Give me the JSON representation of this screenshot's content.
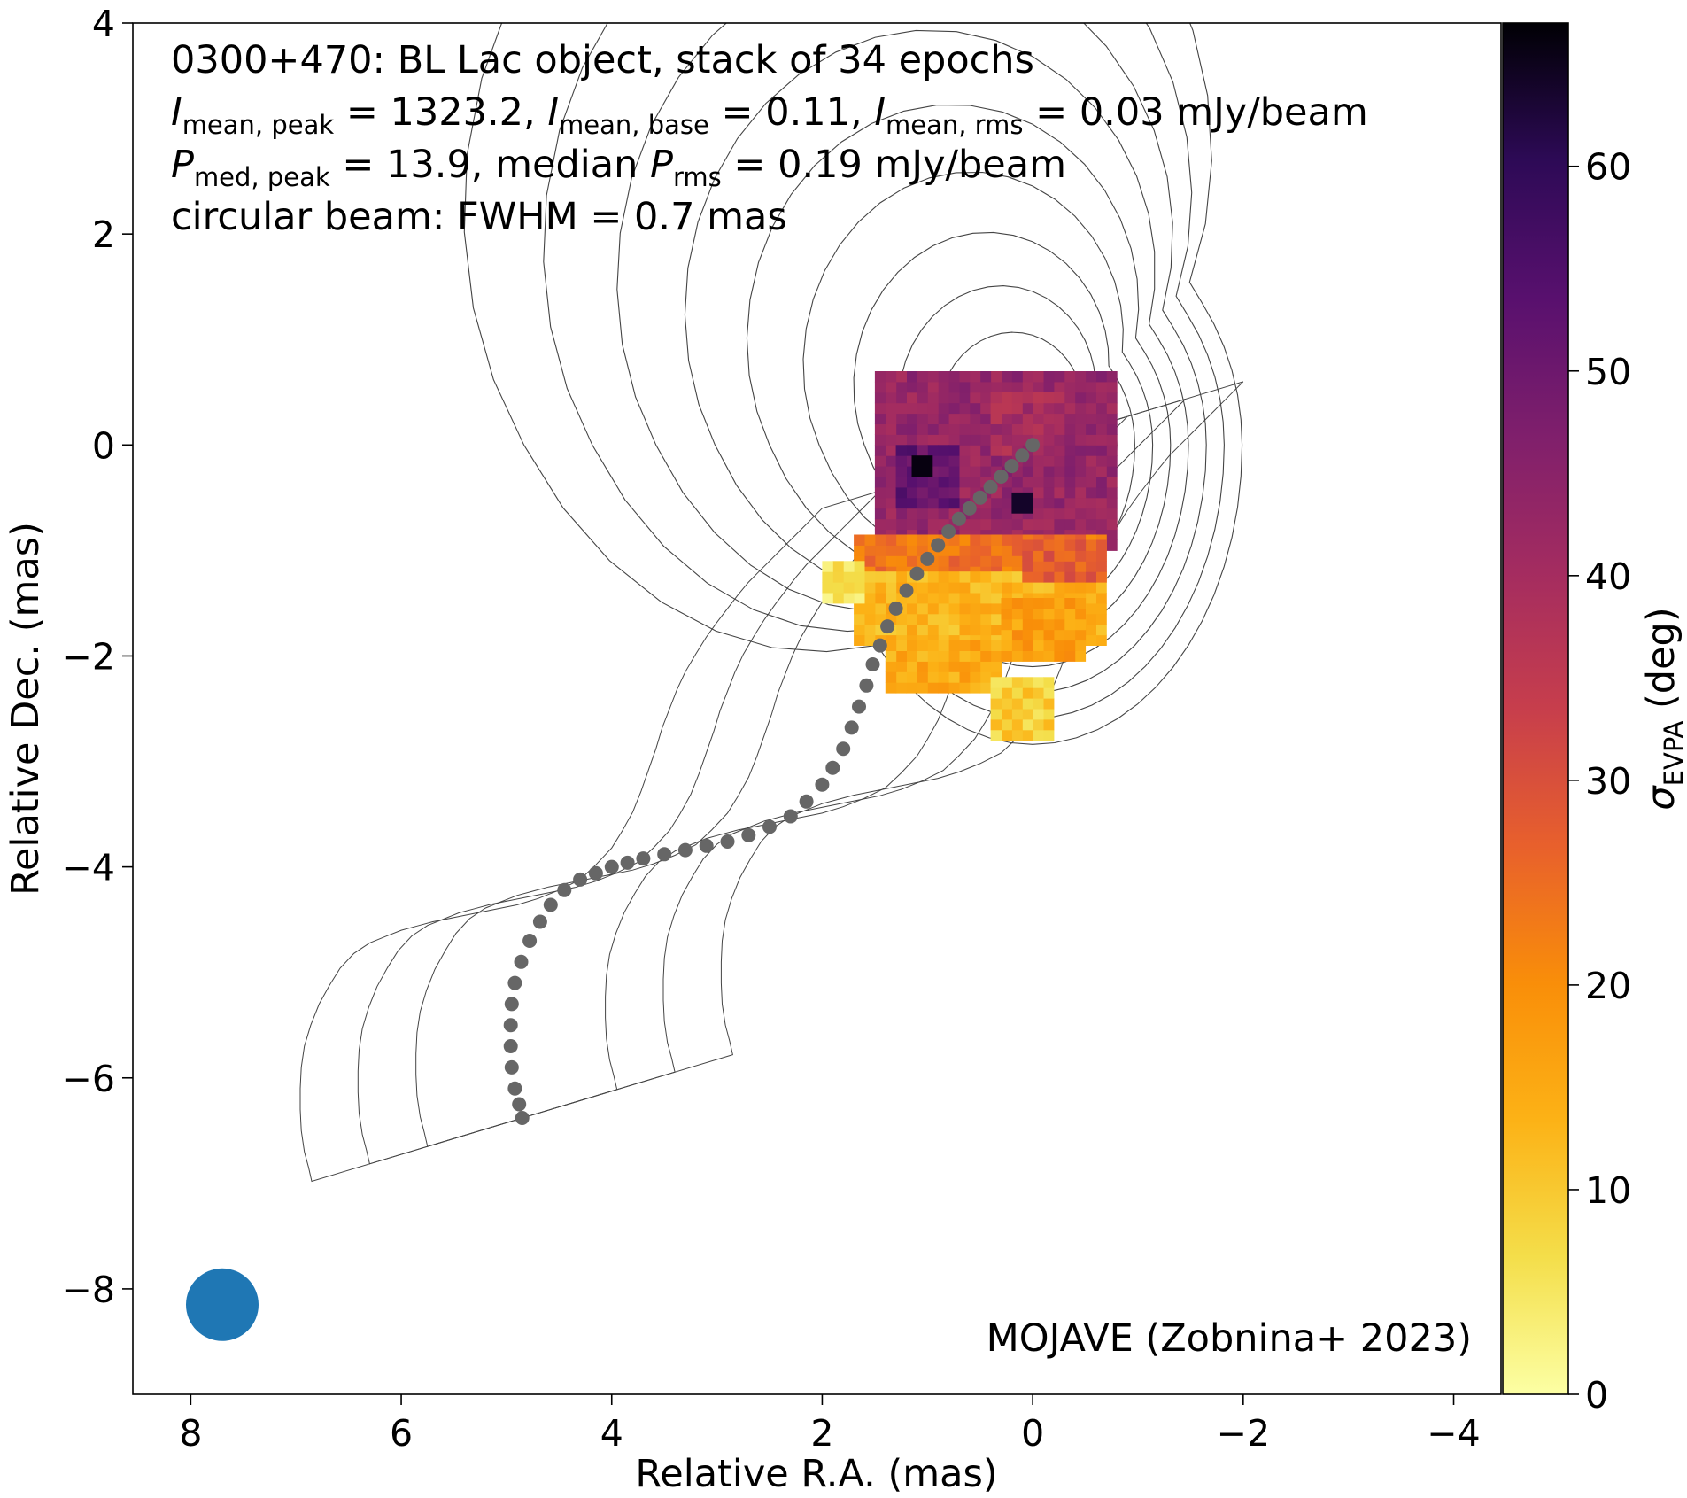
{
  "chart_data": {
    "type": "heatmap",
    "title": "",
    "xlabel": "Relative R.A. (mas)",
    "ylabel": "Relative Dec. (mas)",
    "xlim": [
      8.55,
      -4.45
    ],
    "ylim": [
      -9.0,
      4.0
    ],
    "x_ticks": [
      8,
      6,
      4,
      2,
      0,
      -2,
      -4
    ],
    "y_ticks": [
      4,
      2,
      0,
      -2,
      -4,
      -6,
      -8
    ],
    "x_tick_labels": [
      "8",
      "6",
      "4",
      "2",
      "0",
      "−2",
      "−4"
    ],
    "y_tick_labels": [
      "4",
      "2",
      "0",
      "−2",
      "−4",
      "−6",
      "−8"
    ],
    "annotation": {
      "line1": "0300+470: BL Lac object, stack of 34 epochs",
      "line2": {
        "sym1": "I",
        "sub1": "mean, peak",
        "val1": " = 1323.2, ",
        "sym2": "I",
        "sub2": "mean, base",
        "val2": " = 0.11, ",
        "sym3": "I",
        "sub3": "mean, rms",
        "val3": " = 0.03 mJy/beam"
      },
      "line3": {
        "sym1": "P",
        "sub1": "med, peak",
        "val1": " = 13.9, median ",
        "sym2": "P",
        "sub2": "rms",
        "val2": " = 0.19 mJy/beam"
      },
      "line4": "circular beam: FWHM = 0.7 mas"
    },
    "credit": "MOJAVE (Zobnina+ 2023)",
    "colorbar": {
      "label_sym": "σ",
      "label_sub": "EVPA",
      "label_unit": " (deg)",
      "range": [
        0,
        67
      ],
      "ticks": [
        0,
        10,
        20,
        30,
        40,
        50,
        60
      ],
      "tick_labels": [
        "0",
        "10",
        "20",
        "30",
        "40",
        "50",
        "60"
      ],
      "colormap": "inferno_r"
    },
    "beam": {
      "x": 7.7,
      "y": -8.15,
      "fwhm_mas": 0.7,
      "color": "#1f77b4"
    },
    "ridgeline": {
      "color": "#666666",
      "points": [
        [
          0.0,
          0.0
        ],
        [
          0.1,
          -0.1
        ],
        [
          0.2,
          -0.2
        ],
        [
          0.3,
          -0.3
        ],
        [
          0.4,
          -0.4
        ],
        [
          0.5,
          -0.5
        ],
        [
          0.6,
          -0.6
        ],
        [
          0.7,
          -0.7
        ],
        [
          0.8,
          -0.82
        ],
        [
          0.9,
          -0.95
        ],
        [
          1.0,
          -1.08
        ],
        [
          1.1,
          -1.22
        ],
        [
          1.2,
          -1.38
        ],
        [
          1.3,
          -1.55
        ],
        [
          1.38,
          -1.72
        ],
        [
          1.45,
          -1.9
        ],
        [
          1.52,
          -2.08
        ],
        [
          1.58,
          -2.28
        ],
        [
          1.65,
          -2.48
        ],
        [
          1.72,
          -2.68
        ],
        [
          1.8,
          -2.88
        ],
        [
          1.9,
          -3.06
        ],
        [
          2.0,
          -3.22
        ],
        [
          2.15,
          -3.38
        ],
        [
          2.3,
          -3.52
        ],
        [
          2.5,
          -3.62
        ],
        [
          2.7,
          -3.7
        ],
        [
          2.9,
          -3.76
        ],
        [
          3.1,
          -3.8
        ],
        [
          3.3,
          -3.84
        ],
        [
          3.5,
          -3.88
        ],
        [
          3.7,
          -3.92
        ],
        [
          3.85,
          -3.96
        ],
        [
          4.0,
          -4.0
        ],
        [
          4.15,
          -4.06
        ],
        [
          4.3,
          -4.12
        ],
        [
          4.45,
          -4.22
        ],
        [
          4.58,
          -4.36
        ],
        [
          4.68,
          -4.52
        ],
        [
          4.78,
          -4.7
        ],
        [
          4.86,
          -4.9
        ],
        [
          4.92,
          -5.1
        ],
        [
          4.95,
          -5.3
        ],
        [
          4.96,
          -5.5
        ],
        [
          4.96,
          -5.7
        ],
        [
          4.95,
          -5.9
        ],
        [
          4.92,
          -6.1
        ],
        [
          4.88,
          -6.25
        ],
        [
          4.85,
          -6.38
        ]
      ]
    },
    "sigma_evpa_map": {
      "pixel_mas": 0.1,
      "regions": [
        {
          "ra_range": [
            -0.8,
            1.45
          ],
          "dec_range": [
            -1.0,
            0.7
          ],
          "value": 43
        },
        {
          "ra_range": [
            0.7,
            1.3
          ],
          "dec_range": [
            -0.6,
            0.0
          ],
          "value": 52
        },
        {
          "ra_range": [
            -0.3,
            0.4
          ],
          "dec_range": [
            -0.1,
            0.5
          ],
          "value": 40
        },
        {
          "ra_range": [
            -0.7,
            1.65
          ],
          "dec_range": [
            -1.25,
            -0.9
          ],
          "value": 24
        },
        {
          "ra_range": [
            -0.7,
            1.7
          ],
          "dec_range": [
            -1.9,
            -1.2
          ],
          "value": 13
        },
        {
          "ra_range": [
            0.3,
            1.4
          ],
          "dec_range": [
            -2.35,
            -1.85
          ],
          "value": 15
        },
        {
          "ra_range": [
            -0.5,
            0.3
          ],
          "dec_range": [
            -2.05,
            -1.5
          ],
          "value": 17
        },
        {
          "ra_range": [
            -0.2,
            0.35
          ],
          "dec_range": [
            -2.8,
            -2.25
          ],
          "value": 9
        },
        {
          "ra_range": [
            1.6,
            1.95
          ],
          "dec_range": [
            -1.5,
            -1.1
          ],
          "value": 5
        },
        {
          "ra_range": [
            -0.7,
            0.1
          ],
          "dec_range": [
            -1.3,
            -0.9
          ],
          "value": 28
        }
      ],
      "peaks": [
        {
          "ra": 1.05,
          "dec": -0.2,
          "value": 66
        },
        {
          "ra": 0.1,
          "dec": -0.55,
          "value": 64
        }
      ]
    },
    "contours": {
      "color": "#444444",
      "levels_note": "nested contour levels of stacked total intensity",
      "count": 12
    }
  }
}
